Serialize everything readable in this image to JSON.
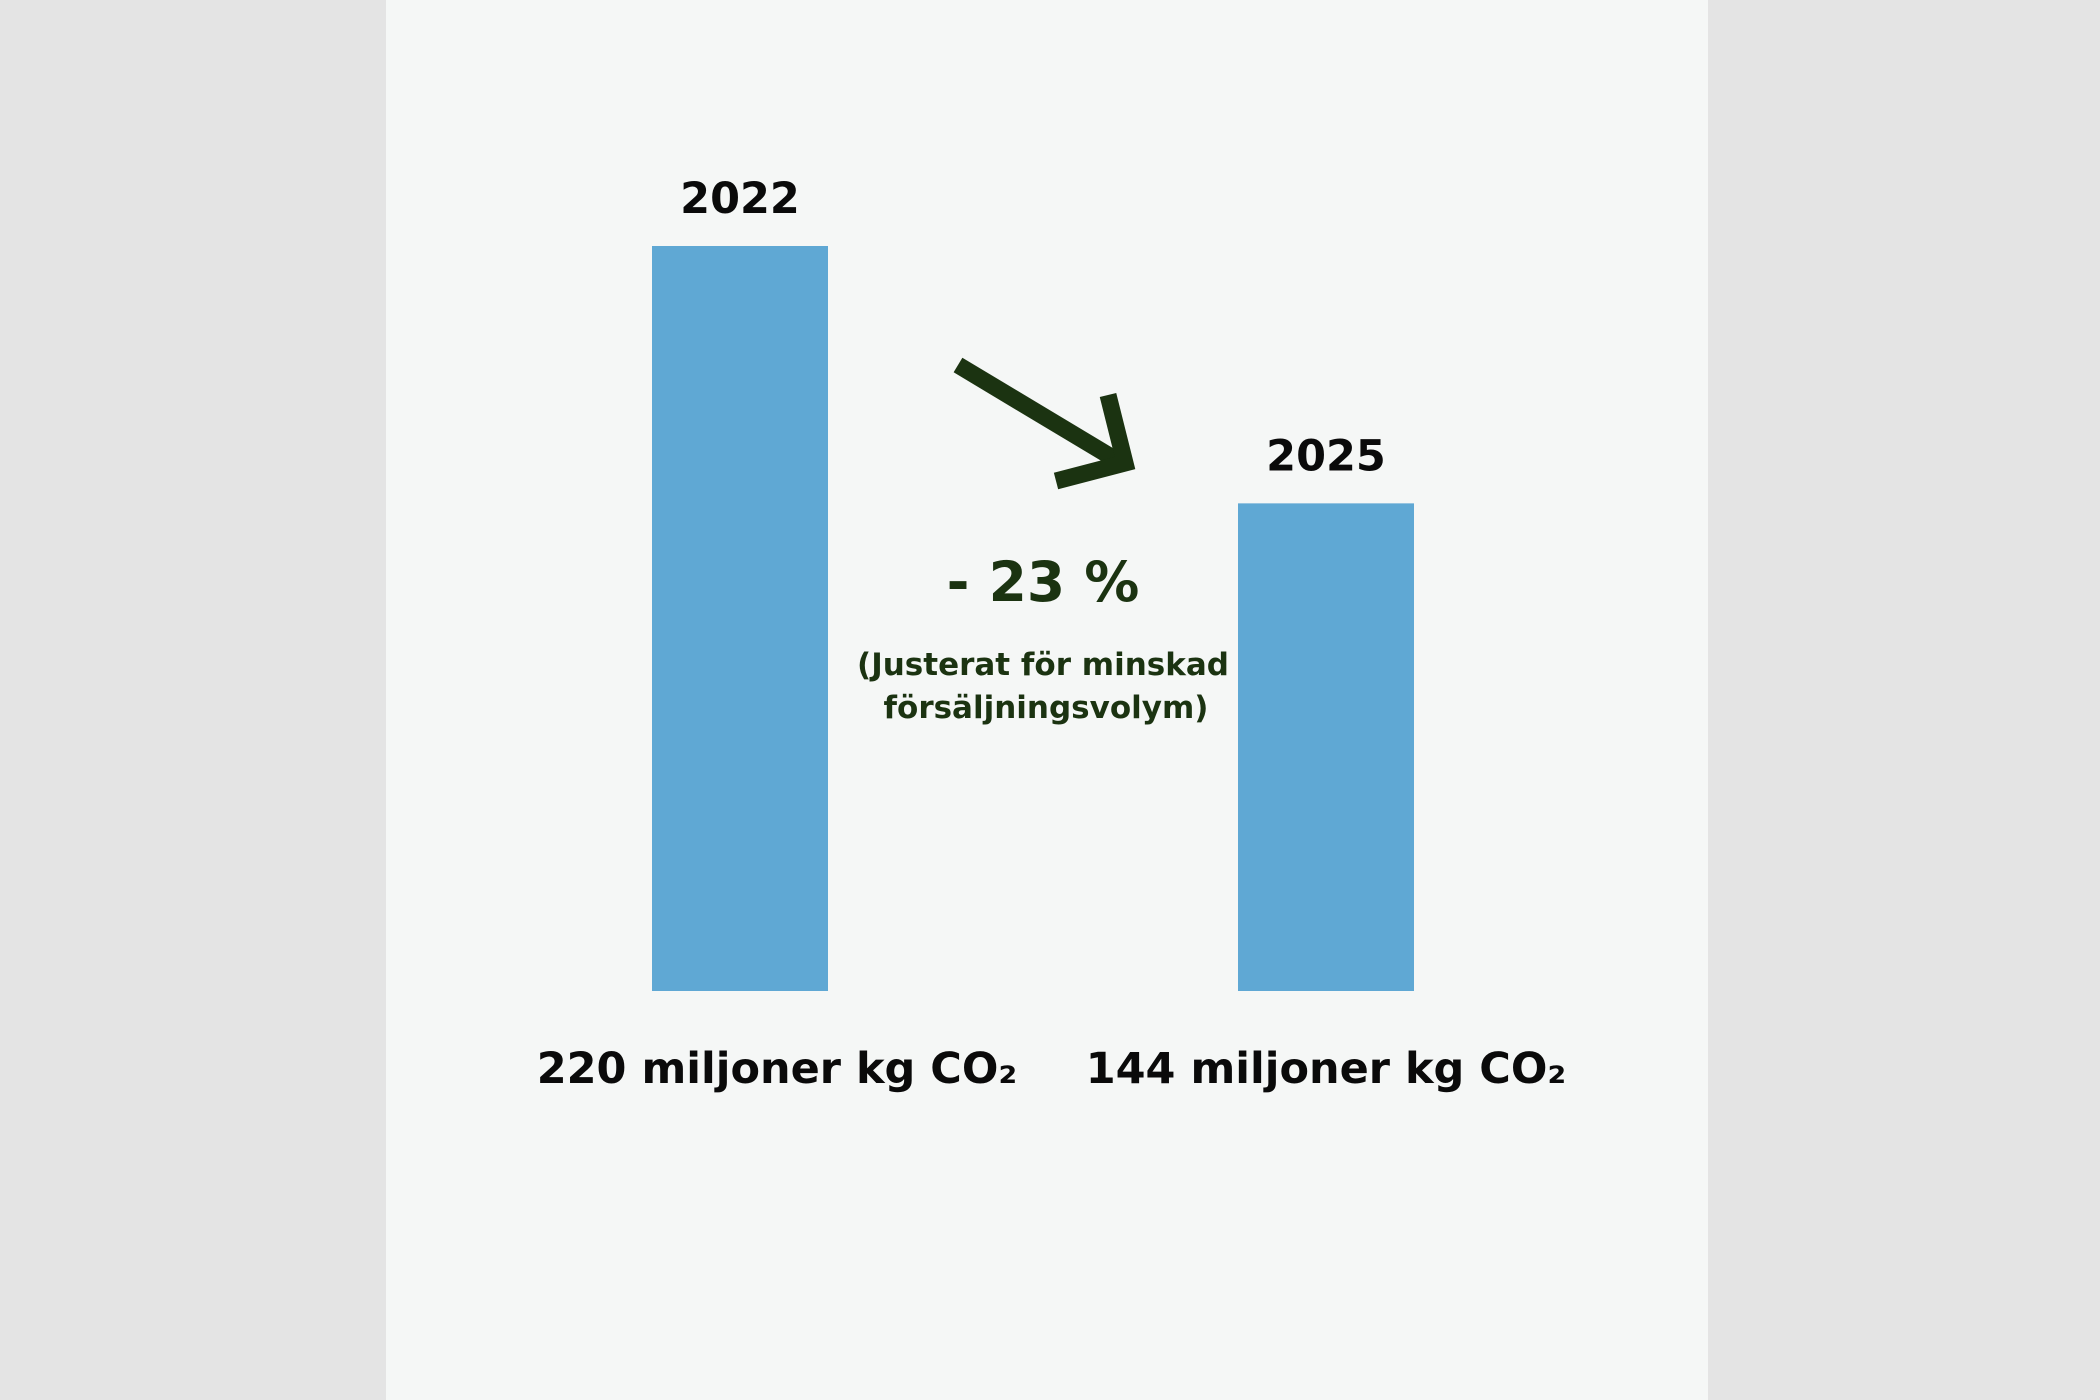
{
  "chart_data": {
    "type": "bar",
    "categories": [
      "2022",
      "2025"
    ],
    "values": [
      220,
      144
    ],
    "value_labels": [
      "220 miljoner kg CO₂",
      "144 miljoner kg CO₂"
    ],
    "change_label": "- 23 %",
    "note_lines": [
      "(Justerat för minskad",
      "försäljningsvolym)"
    ],
    "ylim": [
      0,
      220
    ],
    "grid": false
  },
  "colors": {
    "bar": "#5fa8d4",
    "accent": "#1b3311",
    "text": "#0a0a0a"
  }
}
